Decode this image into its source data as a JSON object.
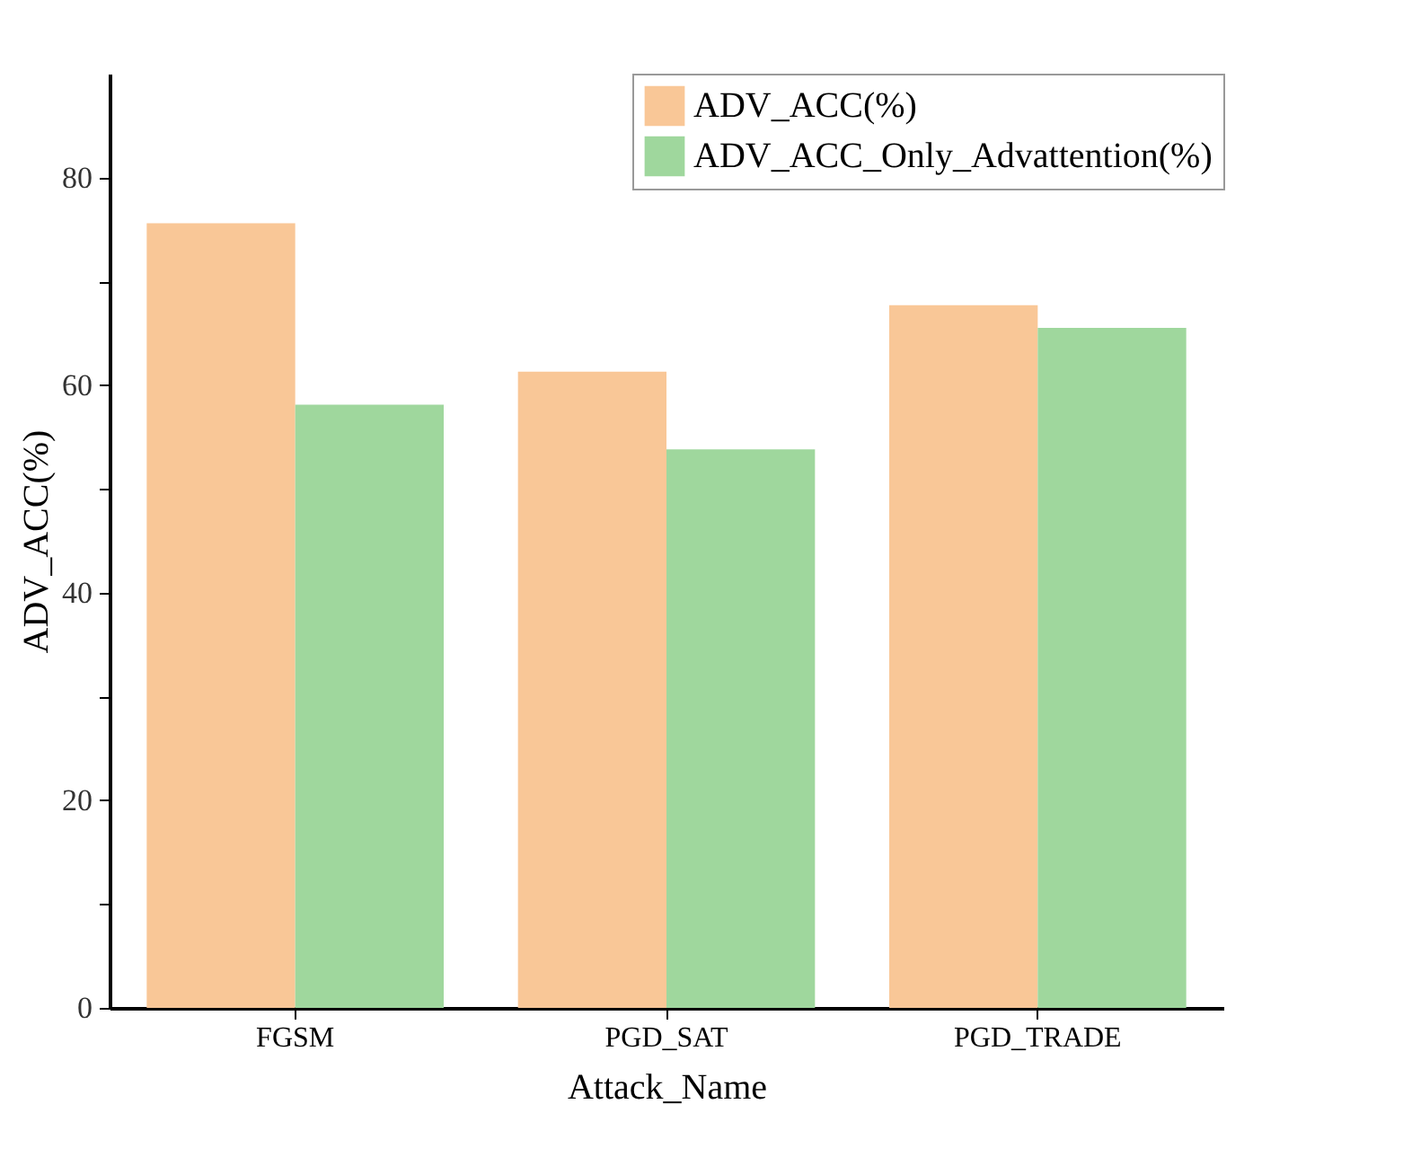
{
  "chart_data": {
    "type": "bar",
    "xlabel": "Attack_Name",
    "ylabel": "ADV_ACC(%)",
    "categories": [
      "FGSM",
      "PGD_SAT",
      "PGD_TRADE"
    ],
    "series": [
      {
        "name": "ADV_ACC(%)",
        "color": "#f9c797",
        "values": [
          75.6,
          61.3,
          67.7
        ]
      },
      {
        "name": "ADV_ACC_Only_Advattention(%)",
        "color": "#9fd79d",
        "values": [
          58.1,
          53.8,
          65.5
        ]
      }
    ],
    "ylim": [
      0,
      90
    ],
    "yticks": [
      0,
      {
        "value": 10,
        "label": null
      },
      20,
      {
        "value": 30,
        "label": null
      },
      40,
      {
        "value": 50,
        "label": null
      },
      60,
      {
        "value": 70,
        "label": null
      },
      80
    ],
    "legend": "top right",
    "grid": false
  }
}
